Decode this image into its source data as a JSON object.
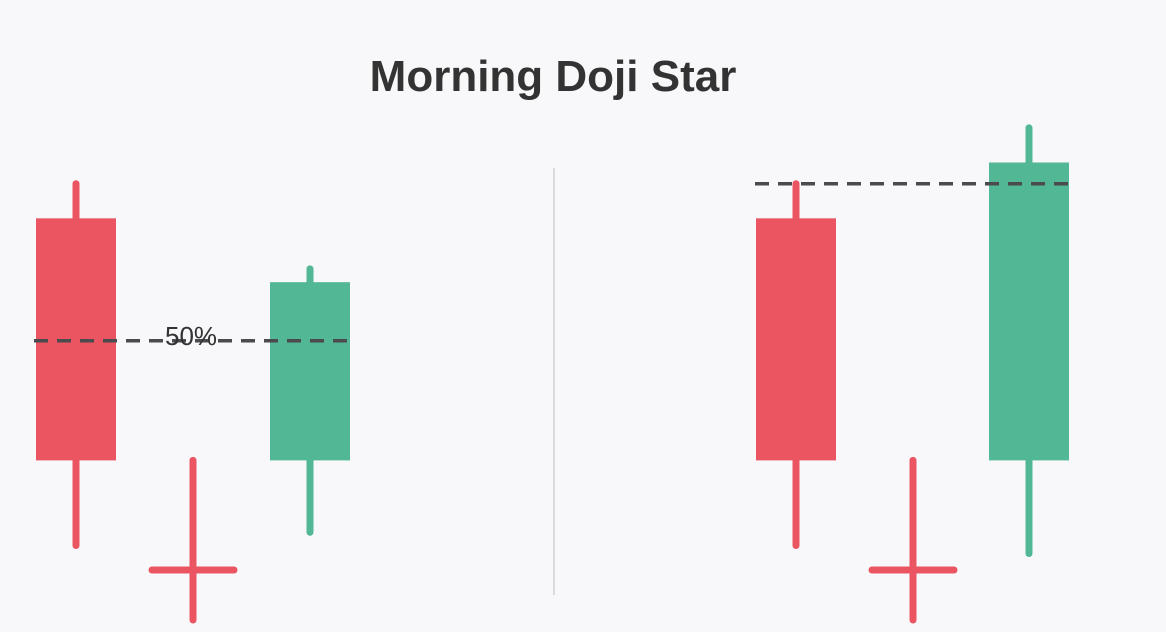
{
  "title": "Morning Doji Star",
  "colors": {
    "bearish": "#eb5562",
    "bullish": "#52b795",
    "dashed_line": "#4a4a4f",
    "divider": "#cfcfd4",
    "background": "#f8f8fa",
    "text": "#333333"
  },
  "left_panel": {
    "level_label": "50%",
    "candles": [
      {
        "name": "bearish-candle",
        "type": "bearish",
        "high": 0.82,
        "open": 0.755,
        "close": 0.3,
        "low": 0.14
      },
      {
        "name": "doji-candle",
        "type": "doji",
        "high": 0.3,
        "open": 0.094,
        "close": 0.094,
        "low": 0.0
      },
      {
        "name": "bullish-candle",
        "type": "bullish",
        "high": 0.66,
        "open": 0.3,
        "close": 0.635,
        "low": 0.165
      }
    ],
    "reference_level": 0.525
  },
  "right_panel": {
    "candles": [
      {
        "name": "bearish-candle",
        "type": "bearish",
        "high": 0.82,
        "open": 0.755,
        "close": 0.3,
        "low": 0.14
      },
      {
        "name": "doji-candle",
        "type": "doji",
        "high": 0.3,
        "open": 0.094,
        "close": 0.094,
        "low": 0.0
      },
      {
        "name": "bullish-candle",
        "type": "bullish",
        "high": 0.925,
        "open": 0.3,
        "close": 0.86,
        "low": 0.125
      }
    ],
    "reference_level": 0.82
  }
}
